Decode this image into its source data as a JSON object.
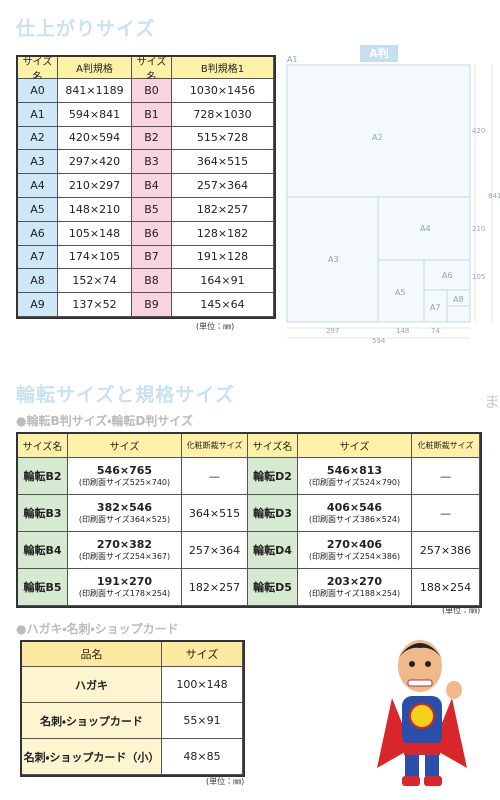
{
  "finished_sizes": {
    "title": "仕上がりサイズ",
    "unit_note": "(単位：㎜)",
    "table": {
      "header": [
        "サイズ名",
        "A判規格",
        "サイズ名",
        "B判規格1"
      ],
      "rows": [
        [
          "A0",
          "841×1189",
          "B0",
          "1030×1456"
        ],
        [
          "A1",
          "594×841",
          "B1",
          "728×1030"
        ],
        [
          "A2",
          "420×594",
          "B2",
          "515×728"
        ],
        [
          "A3",
          "297×420",
          "B3",
          "364×515"
        ],
        [
          "A4",
          "210×297",
          "B4",
          "257×364"
        ],
        [
          "A5",
          "148×210",
          "B5",
          "182×257"
        ],
        [
          "A6",
          "105×148",
          "B6",
          "128×182"
        ],
        [
          "A7",
          "174×105",
          "B7",
          "191×128"
        ],
        [
          "A8",
          "152×74",
          "B8",
          "164×91"
        ],
        [
          "A9",
          "137×52",
          "B9",
          "145×64"
        ]
      ]
    }
  },
  "diagram": {
    "label": "A判",
    "sheets": [
      "A1",
      "A2",
      "A3",
      "A4",
      "A5",
      "A6",
      "A7",
      "A8"
    ],
    "dimensions": [
      "420",
      "841",
      "210",
      "105",
      "297",
      "148",
      "74",
      "594"
    ]
  },
  "side_text": "ます。",
  "rotary": {
    "title": "輪転サイズと規格サイズ",
    "subtitle": "●輪転B判サイズ・輪転D判サイズ",
    "unit_note": "(単位：㎜)",
    "table": {
      "header": [
        "サイズ名",
        "サイズ",
        "化粧断裁サイズ",
        "サイズ名",
        "サイズ",
        "化粧断裁サイズ"
      ],
      "rows": [
        [
          "輪転B2",
          "546×765",
          "(印刷面サイズ525×740)",
          "—",
          "輪転D2",
          "546×813",
          "(印刷面サイズ524×790)",
          "—"
        ],
        [
          "輪転B3",
          "382×546",
          "(印刷面サイズ364×525)",
          "364×515",
          "輪転D3",
          "406×546",
          "(印刷面サイズ386×524)",
          "—"
        ],
        [
          "輪転B4",
          "270×382",
          "(印刷面サイズ254×367)",
          "257×364",
          "輪転D4",
          "270×406",
          "(印刷面サイズ254×386)",
          "257×386"
        ],
        [
          "輪転B5",
          "191×270",
          "(印刷面サイズ178×254)",
          "182×257",
          "輪転D5",
          "203×270",
          "(印刷面サイズ188×254)",
          "188×254"
        ]
      ]
    }
  },
  "cards": {
    "subtitle": "●ハガキ・名刺・ショップカード",
    "unit_note": "(単位：㎜)",
    "table": {
      "header": [
        "品名",
        "サイズ"
      ],
      "rows": [
        [
          "ハガキ",
          "100×148"
        ],
        [
          "名刺・ショップカード",
          "55×91"
        ],
        [
          "名刺・ショップカード（小）",
          "48×85"
        ]
      ]
    }
  }
}
